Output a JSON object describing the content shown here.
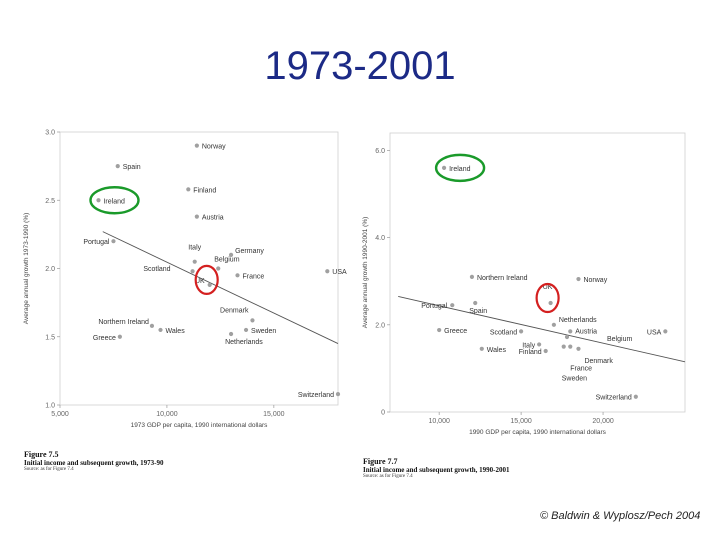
{
  "slide": {
    "title": "1973-2001",
    "copyright": "© Baldwin & Wyplosz/Pech 2004"
  },
  "colors": {
    "title": "#1c2a86",
    "highlight_green": "#1a9a2a",
    "highlight_red": "#d42020",
    "point": "#a0a0a0"
  },
  "chart_data": [
    {
      "type": "scatter",
      "caption": {
        "figure": "Figure 7.5",
        "title": "Initial income and subsequent growth, 1973-90",
        "source": "Source: as for Figure 7.4"
      },
      "xlabel": "1973 GDP per capita, 1990 international dollars",
      "ylabel": "Average annual growth 1973-1990 (%)",
      "xlim": [
        5000,
        18000
      ],
      "ylim": [
        1.0,
        3.0
      ],
      "xticks": [
        5000,
        10000,
        15000
      ],
      "xtick_labels": [
        "5,000",
        "10,000",
        "15,000"
      ],
      "yticks": [
        1.0,
        1.5,
        2.0,
        2.5,
        3.0
      ],
      "ytick_labels": [
        "1.0",
        "1.5",
        "2.0",
        "2.5",
        "3.0"
      ],
      "trendline": [
        [
          7000,
          2.27
        ],
        [
          18000,
          1.45
        ]
      ],
      "points": [
        {
          "label": "Norway",
          "x": 11400,
          "y": 2.9
        },
        {
          "label": "Spain",
          "x": 7700,
          "y": 2.75
        },
        {
          "label": "Finland",
          "x": 11000,
          "y": 2.58
        },
        {
          "label": "Ireland",
          "x": 6800,
          "y": 2.5
        },
        {
          "label": "Austria",
          "x": 11400,
          "y": 2.38
        },
        {
          "label": "Portugal",
          "x": 7500,
          "y": 2.2
        },
        {
          "label": "Italy",
          "x": 11300,
          "y": 2.05
        },
        {
          "label": "Germany",
          "x": 13000,
          "y": 2.1
        },
        {
          "label": "Belgium",
          "x": 12400,
          "y": 2.0
        },
        {
          "label": "Scotland",
          "x": 11200,
          "y": 1.98
        },
        {
          "label": "France",
          "x": 13300,
          "y": 1.95
        },
        {
          "label": "USA",
          "x": 17500,
          "y": 1.98
        },
        {
          "label": "UK",
          "x": 12000,
          "y": 1.88
        },
        {
          "label": "Denmark",
          "x": 14000,
          "y": 1.62
        },
        {
          "label": "Northern Ireland",
          "x": 9300,
          "y": 1.58
        },
        {
          "label": "Wales",
          "x": 9700,
          "y": 1.55
        },
        {
          "label": "Sweden",
          "x": 13700,
          "y": 1.55
        },
        {
          "label": "Greece",
          "x": 7800,
          "y": 1.5
        },
        {
          "label": "Netherlands",
          "x": 13000,
          "y": 1.52
        },
        {
          "label": "Switzerland",
          "x": 18000,
          "y": 1.08
        }
      ],
      "highlighted": {
        "green": "Ireland",
        "red": "UK"
      }
    },
    {
      "type": "scatter",
      "caption": {
        "figure": "Figure 7.7",
        "title": "Initial income and subsequent growth, 1990-2001",
        "source": "Source: as for Figure 7.4"
      },
      "xlabel": "1990 GDP per capita, 1990 international dollars",
      "ylabel": "Average annual growth 1990-2001 (%)",
      "xlim": [
        7000,
        25000
      ],
      "ylim": [
        0.0,
        6.4
      ],
      "xticks": [
        10000,
        15000,
        20000
      ],
      "xtick_labels": [
        "10,000",
        "15,000",
        "20,000"
      ],
      "yticks": [
        0.0,
        2.0,
        4.0,
        6.0
      ],
      "ytick_labels": [
        "0",
        "2.0",
        "4.0",
        "6.0"
      ],
      "trendline": [
        [
          7500,
          2.65
        ],
        [
          25000,
          1.15
        ]
      ],
      "points": [
        {
          "label": "Ireland",
          "x": 10300,
          "y": 5.6
        },
        {
          "label": "Northern Ireland",
          "x": 12000,
          "y": 3.1
        },
        {
          "label": "Norway",
          "x": 18500,
          "y": 3.05
        },
        {
          "label": "Portugal",
          "x": 10800,
          "y": 2.45
        },
        {
          "label": "Spain",
          "x": 12200,
          "y": 2.5
        },
        {
          "label": "UK",
          "x": 16800,
          "y": 2.5
        },
        {
          "label": "Netherlands",
          "x": 17000,
          "y": 2.0
        },
        {
          "label": "Austria",
          "x": 18000,
          "y": 1.85
        },
        {
          "label": "Greece",
          "x": 10000,
          "y": 1.88
        },
        {
          "label": "Scotland",
          "x": 15000,
          "y": 1.85
        },
        {
          "label": "Belgium",
          "x": 17800,
          "y": 1.72
        },
        {
          "label": "USA",
          "x": 23800,
          "y": 1.85
        },
        {
          "label": "Italy",
          "x": 16100,
          "y": 1.55
        },
        {
          "label": "Wales",
          "x": 12600,
          "y": 1.45
        },
        {
          "label": "Finland",
          "x": 16500,
          "y": 1.4
        },
        {
          "label": "Denmark",
          "x": 18500,
          "y": 1.45
        },
        {
          "label": "France",
          "x": 18000,
          "y": 1.5
        },
        {
          "label": "Sweden",
          "x": 17600,
          "y": 1.5
        },
        {
          "label": "Switzerland",
          "x": 22000,
          "y": 0.35
        }
      ],
      "highlighted": {
        "green": "Ireland",
        "red": "UK"
      }
    }
  ]
}
